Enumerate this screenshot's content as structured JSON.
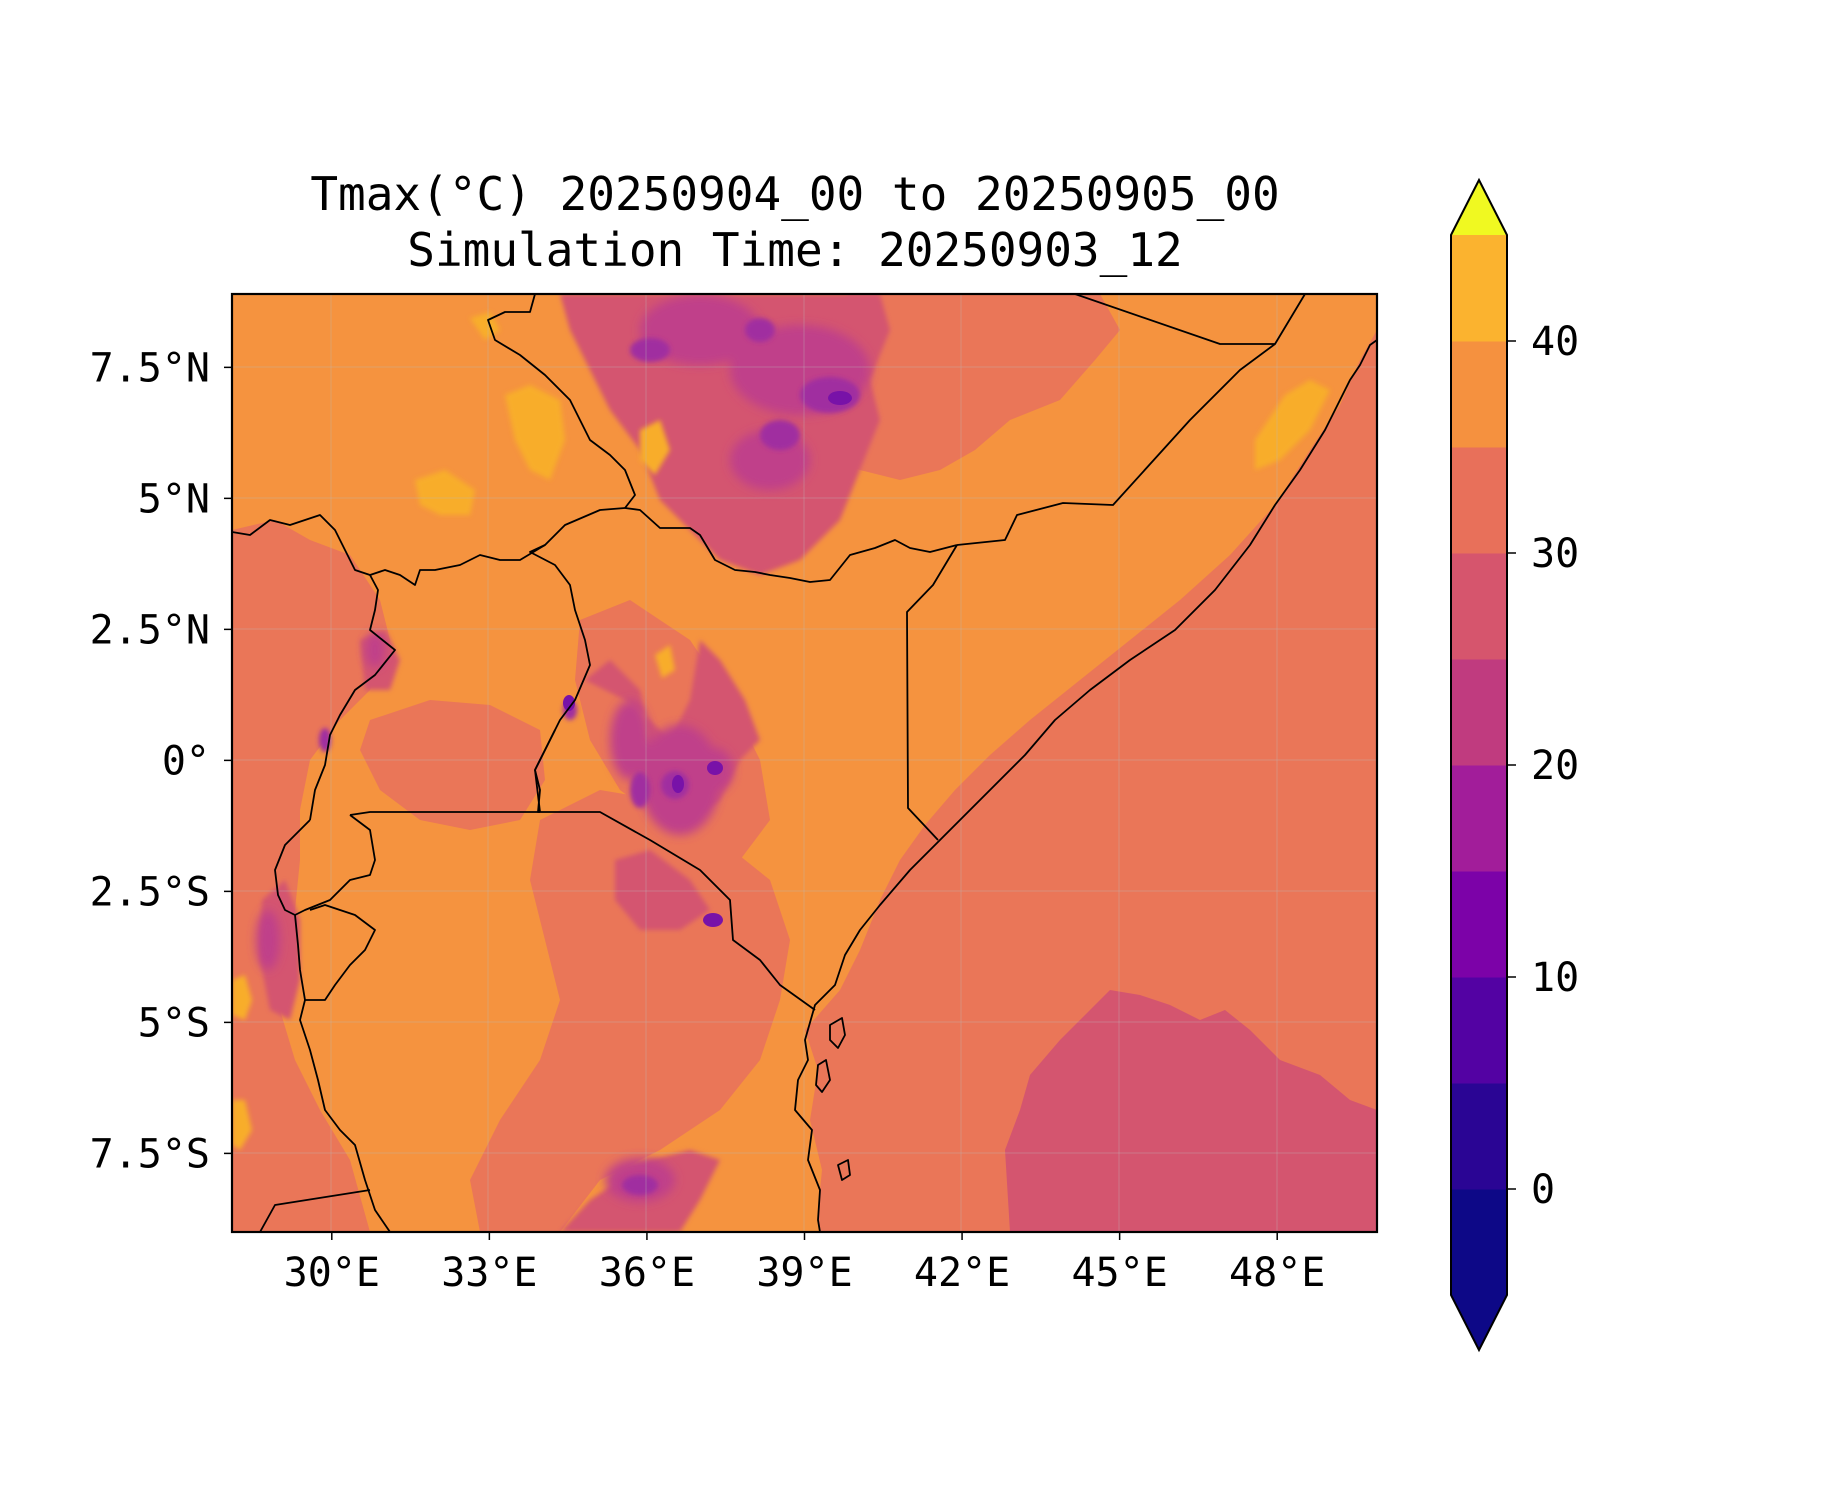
{
  "figure": {
    "title_line1": "Tmax(°C) 20250904_00 to 20250905_00",
    "title_line2": "Simulation Time: 20250903_12"
  },
  "map": {
    "variable": "Tmax",
    "units": "°C",
    "extent": {
      "lon_min": 28.1,
      "lon_max": 49.9,
      "lat_min": -9.0,
      "lat_max": 8.9
    },
    "lon_ticks": [
      30,
      33,
      36,
      39,
      42,
      45,
      48
    ],
    "lat_ticks": [
      7.5,
      5,
      2.5,
      0,
      -2.5,
      -5,
      -7.5
    ],
    "lon_tick_labels": [
      "30°E",
      "33°E",
      "36°E",
      "39°E",
      "42°E",
      "45°E",
      "48°E"
    ],
    "lat_tick_labels": [
      "7.5°N",
      "5°N",
      "2.5°N",
      "0°",
      "2.5°S",
      "5°S",
      "7.5°S"
    ],
    "colors": {
      "background_land": "#f5933f",
      "ocean_warm": "#ea7658",
      "cool_zone": "#d4556f",
      "highland_mid": "#c0408a",
      "highland_cold": "#a02da0",
      "peak_cold": "#7812a8",
      "hot": "#f8ad2a",
      "border": "#000000"
    }
  },
  "colorbar": {
    "colormap": "plasma",
    "levels": [
      -5,
      0,
      5,
      10,
      15,
      20,
      25,
      30,
      35,
      40,
      45
    ],
    "colors": [
      "#0d0887",
      "#2a0594",
      "#5302a3",
      "#7c02a8",
      "#a21d9a",
      "#c03b7f",
      "#d6556d",
      "#e8705a",
      "#f5913f",
      "#fbb32f",
      "#f3e128"
    ],
    "under_color": "#0d0887",
    "over_color": "#f0f921",
    "ticks": [
      0,
      10,
      20,
      30,
      40
    ],
    "tick_labels": [
      "0",
      "10",
      "20",
      "30",
      "40"
    ],
    "extend": "both"
  }
}
